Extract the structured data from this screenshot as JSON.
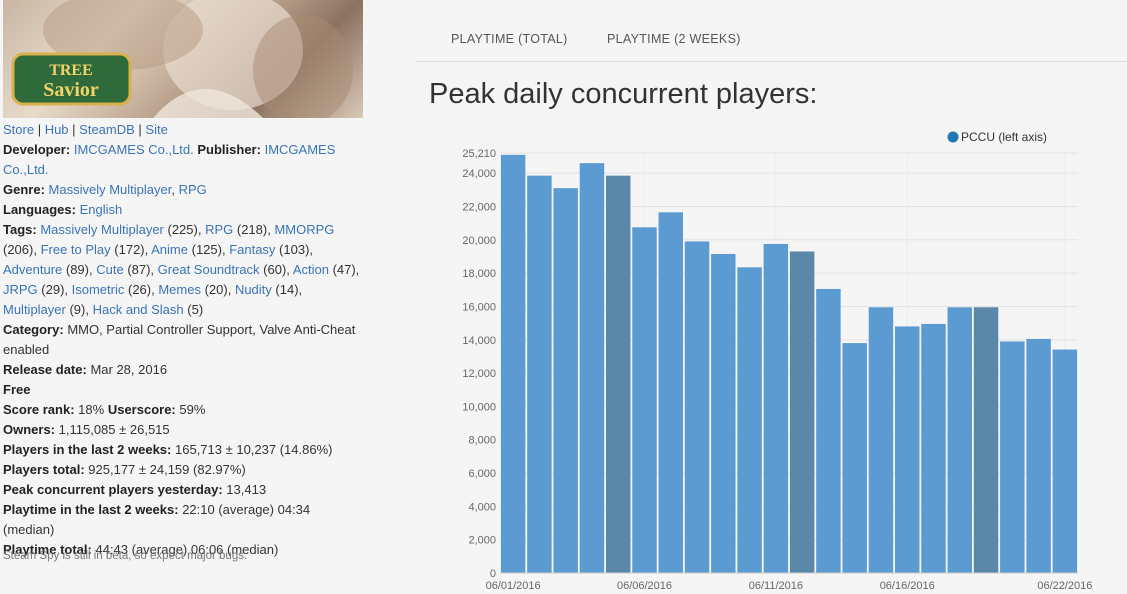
{
  "app": {
    "game_title": "Tree of Savior",
    "links": [
      {
        "label": "Store"
      },
      {
        "label": "Hub"
      },
      {
        "label": "SteamDB"
      },
      {
        "label": "Site"
      }
    ],
    "developer_label": "Developer:",
    "developer": "IMCGAMES Co.,Ltd.",
    "publisher_label": "Publisher:",
    "publisher": "IMCGAMES Co.,Ltd.",
    "genre_label": "Genre:",
    "genres": [
      "Massively Multiplayer",
      "RPG"
    ],
    "languages_label": "Languages:",
    "languages": "English",
    "tags_label": "Tags:",
    "tags": [
      {
        "name": "Massively Multiplayer",
        "count": "(225)"
      },
      {
        "name": "RPG",
        "count": "(218)"
      },
      {
        "name": "MMORPG",
        "count": "(206)"
      },
      {
        "name": "Free to Play",
        "count": "(172)"
      },
      {
        "name": "Anime",
        "count": "(125)"
      },
      {
        "name": "Fantasy",
        "count": "(103)"
      },
      {
        "name": "Adventure",
        "count": "(89)"
      },
      {
        "name": "Cute",
        "count": "(87)"
      },
      {
        "name": "Great Soundtrack",
        "count": "(60)"
      },
      {
        "name": "Action",
        "count": "(47)"
      },
      {
        "name": "JRPG",
        "count": "(29)"
      },
      {
        "name": "Isometric",
        "count": "(26)"
      },
      {
        "name": "Memes",
        "count": "(20)"
      },
      {
        "name": "Nudity",
        "count": "(14)"
      },
      {
        "name": "Multiplayer",
        "count": "(9)"
      },
      {
        "name": "Hack and Slash",
        "count": "(5)"
      }
    ],
    "category_label": "Category:",
    "category": "MMO, Partial Controller Support, Valve Anti-Cheat enabled",
    "release_label": "Release date:",
    "release_date": "Mar 28, 2016",
    "price": "Free",
    "score_rank_label": "Score rank:",
    "score_rank": "18%",
    "userscore_label": "Userscore:",
    "userscore": "59%",
    "owners_label": "Owners:",
    "owners": "1,115,085 ± 26,515",
    "players2w_label": "Players in the last 2 weeks:",
    "players2w": "165,713 ± 10,237 (14.86%)",
    "players_total_label": "Players total:",
    "players_total": "925,177 ± 24,159 (82.97%)",
    "peak_yesterday_label": "Peak concurrent players yesterday:",
    "peak_yesterday": "13,413",
    "playtime2w_label": "Playtime in the last 2 weeks:",
    "playtime2w": "22:10 (average) 04:34 (median)",
    "playtime_total_label": "Playtime total:",
    "playtime_total": "44:43 (average) 06:06 (median)",
    "beta_note": "Steam Spy is still in beta, so expect major bugs."
  },
  "tabs": [
    {
      "label": "PLAYTIME (TOTAL)"
    },
    {
      "label": "PLAYTIME (2 WEEKS)"
    }
  ],
  "chart_title": "Peak daily concurrent players:",
  "colors": {
    "bar": "#5b9bd1",
    "bar_dark": "#5b88a8",
    "legend_dot": "#1f77b4",
    "link": "#3a74b4"
  },
  "chart_data": {
    "type": "bar",
    "legend": "PCCU (left axis)",
    "legend_position": "top-right",
    "grid": true,
    "ylim": [
      0,
      25210
    ],
    "yticks": [
      0,
      2000,
      4000,
      6000,
      8000,
      10000,
      12000,
      14000,
      16000,
      18000,
      20000,
      22000,
      24000
    ],
    "ytick_labels": [
      "0",
      "2,000",
      "4,000",
      "6,000",
      "8,000",
      "10,000",
      "12,000",
      "14,000",
      "16,000",
      "18,000",
      "20,000",
      "22,000",
      "24,000"
    ],
    "ymax_label": "25,210",
    "categories": [
      "06/01",
      "06/02",
      "06/03",
      "06/04",
      "06/05",
      "06/06",
      "06/07",
      "06/08",
      "06/09",
      "06/10",
      "06/11",
      "06/12",
      "06/13",
      "06/14",
      "06/15",
      "06/16",
      "06/17",
      "06/18",
      "06/19",
      "06/20",
      "06/21",
      "06/22"
    ],
    "values": [
      25100,
      23850,
      23100,
      24600,
      23850,
      20750,
      21650,
      19900,
      19150,
      18350,
      19750,
      19300,
      17050,
      13800,
      15950,
      14800,
      14950,
      15950,
      15950,
      13900,
      14050,
      13413
    ],
    "highlight": [
      false,
      false,
      false,
      false,
      true,
      false,
      false,
      false,
      false,
      false,
      false,
      true,
      false,
      false,
      false,
      false,
      false,
      false,
      true,
      false,
      false,
      false
    ],
    "xtick_labels": [
      {
        "index": 0,
        "label": "06/01/2016"
      },
      {
        "index": 5,
        "label": "06/06/2016"
      },
      {
        "index": 10,
        "label": "06/11/2016"
      },
      {
        "index": 15,
        "label": "06/16/2016"
      },
      {
        "index": 21,
        "label": "06/22/2016"
      }
    ]
  }
}
